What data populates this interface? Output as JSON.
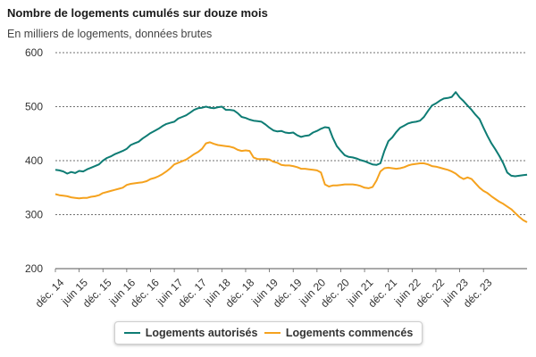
{
  "chart_data": {
    "type": "line",
    "title": "Nombre de logements cumulés sur douze mois",
    "subtitle": "En milliers de logements, données brutes",
    "ylim": [
      200,
      600
    ],
    "yticks": [
      200,
      300,
      400,
      500,
      600
    ],
    "grid": "horizontal dashed",
    "legend_position": "bottom",
    "x_start": "déc. 14",
    "x_end": "déc. 23",
    "x_tick_labels": [
      "déc. 14",
      "juin 15",
      "déc. 15",
      "juin 16",
      "déc. 16",
      "juin 17",
      "déc. 17",
      "juin 18",
      "déc. 18",
      "juin 19",
      "déc. 19",
      "juin 20",
      "déc. 20",
      "juin 21",
      "déc. 21",
      "juin 22",
      "déc. 22",
      "juin 23",
      "déc. 23"
    ],
    "series": [
      {
        "name": "Logements autorisés",
        "color": "#0e7c74",
        "values": [
          383,
          382,
          380,
          376,
          379,
          377,
          381,
          380,
          384,
          387,
          390,
          393,
          400,
          405,
          408,
          412,
          415,
          418,
          422,
          429,
          432,
          435,
          441,
          446,
          451,
          455,
          459,
          464,
          468,
          470,
          472,
          478,
          481,
          484,
          489,
          494,
          497,
          498,
          500,
          498,
          497,
          499,
          500,
          494,
          494,
          493,
          488,
          481,
          479,
          476,
          474,
          473,
          472,
          467,
          461,
          456,
          454,
          455,
          452,
          451,
          452,
          447,
          444,
          446,
          447,
          452,
          455,
          459,
          462,
          461,
          442,
          427,
          418,
          410,
          407,
          406,
          404,
          401,
          399,
          396,
          393,
          392,
          395,
          418,
          436,
          443,
          453,
          461,
          465,
          469,
          471,
          472,
          474,
          481,
          492,
          502,
          506,
          511,
          515,
          516,
          518,
          527,
          517,
          510,
          502,
          494,
          485,
          477,
          461,
          446,
          432,
          421,
          409,
          395,
          378,
          372,
          371,
          372,
          373,
          374
        ]
      },
      {
        "name": "Logements commencés",
        "color": "#f5a21e",
        "values": [
          338,
          336,
          335,
          334,
          332,
          331,
          330,
          331,
          331,
          333,
          334,
          336,
          340,
          342,
          344,
          346,
          348,
          350,
          355,
          357,
          358,
          359,
          360,
          362,
          366,
          368,
          371,
          375,
          380,
          386,
          393,
          396,
          399,
          402,
          407,
          412,
          416,
          422,
          432,
          434,
          431,
          429,
          428,
          427,
          426,
          424,
          420,
          418,
          419,
          418,
          406,
          403,
          403,
          403,
          402,
          398,
          396,
          392,
          391,
          391,
          390,
          388,
          385,
          385,
          384,
          383,
          382,
          378,
          356,
          352,
          354,
          354,
          355,
          356,
          356,
          356,
          355,
          353,
          350,
          349,
          351,
          363,
          380,
          386,
          387,
          386,
          385,
          386,
          388,
          391,
          393,
          394,
          395,
          395,
          393,
          390,
          389,
          387,
          385,
          383,
          380,
          376,
          370,
          366,
          369,
          366,
          358,
          350,
          344,
          340,
          334,
          329,
          324,
          320,
          315,
          310,
          303,
          296,
          290,
          286
        ]
      }
    ]
  }
}
